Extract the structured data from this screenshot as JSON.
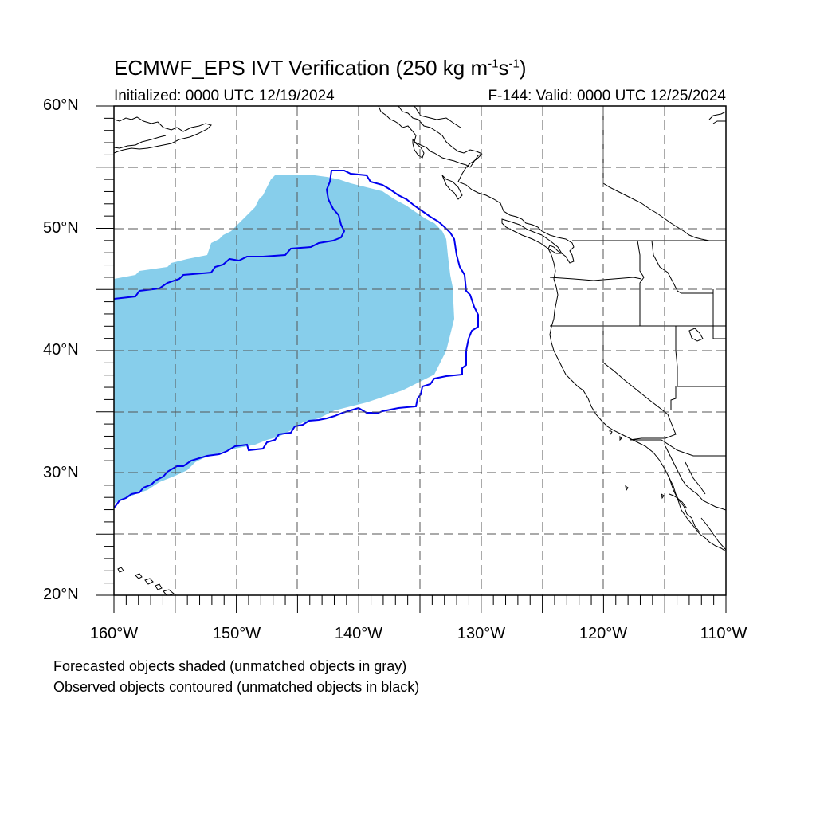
{
  "title": {
    "main": "ECMWF_EPS IVT Verification (250 kg m",
    "exp1": "-1",
    "mid": "s",
    "exp2": "-1",
    "end": ")"
  },
  "subtitle_left": "Initialized: 0000 UTC 12/19/2024",
  "subtitle_right": "F-144: Valid: 0000 UTC 12/25/2024",
  "lat_labels": [
    "60°N",
    "50°N",
    "40°N",
    "30°N",
    "20°N"
  ],
  "lon_labels": [
    "160°W",
    "150°W",
    "140°W",
    "130°W",
    "120°W",
    "110°W"
  ],
  "notes": {
    "forecast": "Forecasted objects shaded (unmatched objects in gray)",
    "observed": "Observed objects contoured (unmatched objects in black)"
  },
  "colors": {
    "forecast_fill": "#87ceeb",
    "observed_contour": "#0000ee",
    "coastline": "#000000",
    "grid": "#555555"
  },
  "map_extent": {
    "lon_min": -160,
    "lon_max": -110,
    "lat_min": 20,
    "lat_max": 60
  }
}
